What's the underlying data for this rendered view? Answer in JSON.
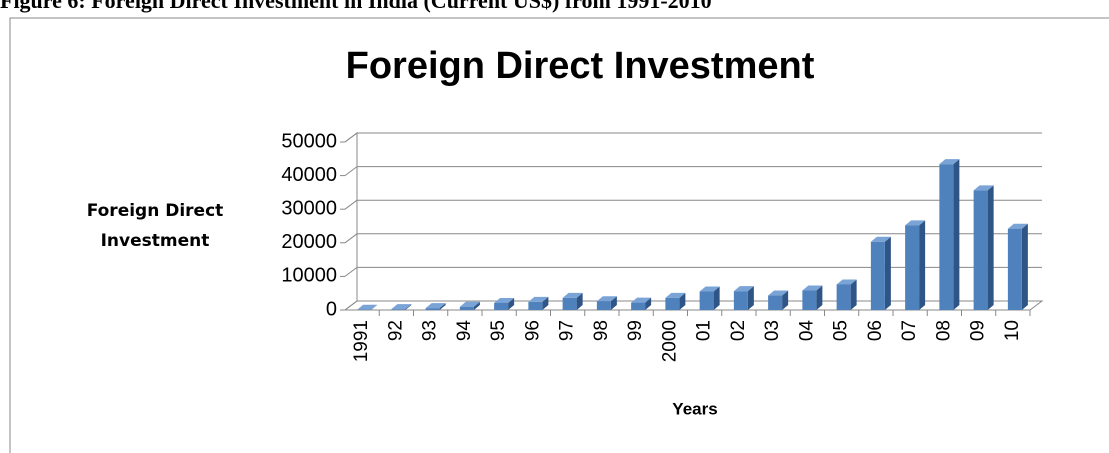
{
  "caption": "Figure 6: Foreign Direct Investment in India (Current US$) from 1991-2010",
  "chart_data": {
    "type": "bar",
    "title": "Foreign Direct Investment",
    "x_label": "Years",
    "y_label": "Foreign Direct Investment",
    "categories": [
      "1991",
      "92",
      "93",
      "94",
      "95",
      "96",
      "97",
      "98",
      "99",
      "2000",
      "01",
      "02",
      "03",
      "04",
      "05",
      "06",
      "07",
      "08",
      "09",
      "10"
    ],
    "values": [
      75,
      250,
      550,
      970,
      2100,
      2400,
      3600,
      2600,
      2200,
      3600,
      5500,
      5600,
      4300,
      5800,
      7600,
      20300,
      25200,
      43400,
      35600,
      24200
    ],
    "color": "#4f81bd",
    "ylim": [
      0,
      50000
    ],
    "yticks": [
      0,
      10000,
      20000,
      30000,
      40000,
      50000
    ],
    "grid": true
  }
}
